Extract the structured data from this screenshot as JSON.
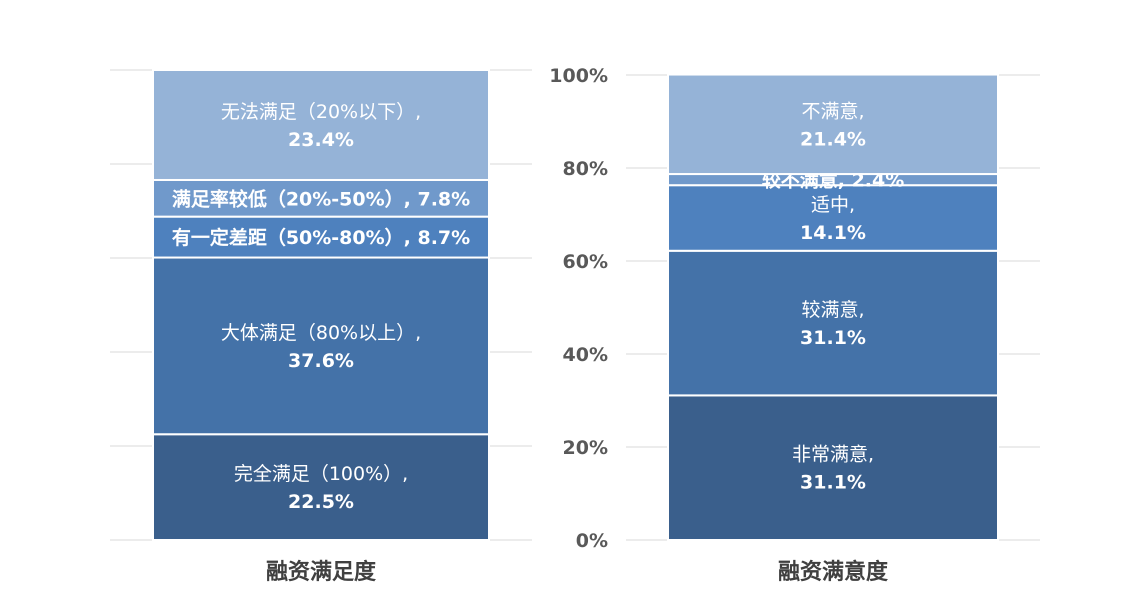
{
  "chart_data": [
    {
      "type": "bar",
      "stacked": true,
      "normalized": true,
      "categories": [
        "融资满足度"
      ],
      "ylim": [
        0,
        100
      ],
      "y_axis_visible": false,
      "grid": true,
      "series": [
        {
          "name": "完全满足（100%）",
          "values": [
            22.5
          ],
          "color": "#3A5F8C",
          "label_lines": [
            "完全满足（100%）,",
            "22.5%"
          ]
        },
        {
          "name": "大体满足（80%以上）",
          "values": [
            37.6
          ],
          "color": "#4472A8",
          "label_lines": [
            "大体满足（80%以上）,",
            "37.6%"
          ]
        },
        {
          "name": "有一定差距（50%-80%）",
          "values": [
            8.7
          ],
          "color": "#4E81BE",
          "label_lines": [
            "有一定差距（50%-80%）, 8.7%"
          ]
        },
        {
          "name": "满足率较低（20%-50%）",
          "values": [
            7.8
          ],
          "color": "#7099CB",
          "label_lines": [
            "满足率较低（20%-50%）, 7.8%"
          ]
        },
        {
          "name": "无法满足（20%以下）",
          "values": [
            23.4
          ],
          "color": "#95B3D7",
          "label_lines": [
            "无法满足（20%以下）,",
            "23.4%"
          ]
        }
      ]
    },
    {
      "type": "bar",
      "stacked": true,
      "normalized": true,
      "categories": [
        "融资满意度"
      ],
      "ylim": [
        0,
        100
      ],
      "yticks": [
        "0%",
        "20%",
        "40%",
        "60%",
        "80%",
        "100%"
      ],
      "grid": true,
      "series": [
        {
          "name": "非常满意",
          "values": [
            31.1
          ],
          "color": "#3A5F8C",
          "label_lines": [
            "非常满意,",
            "31.1%"
          ]
        },
        {
          "name": "较满意",
          "values": [
            31.1
          ],
          "color": "#4472A8",
          "label_lines": [
            "较满意,",
            "31.1%"
          ]
        },
        {
          "name": "适中",
          "values": [
            14.1
          ],
          "color": "#4E81BE",
          "label_lines": [
            "适中,",
            "14.1%"
          ]
        },
        {
          "name": "较不满意",
          "values": [
            2.4
          ],
          "color": "#7099CB",
          "label_lines": [
            "较不满意, 2.4%"
          ]
        },
        {
          "name": "不满意",
          "values": [
            21.4
          ],
          "color": "#95B3D7",
          "label_lines": [
            "不满意,",
            "21.4%"
          ]
        }
      ]
    }
  ]
}
